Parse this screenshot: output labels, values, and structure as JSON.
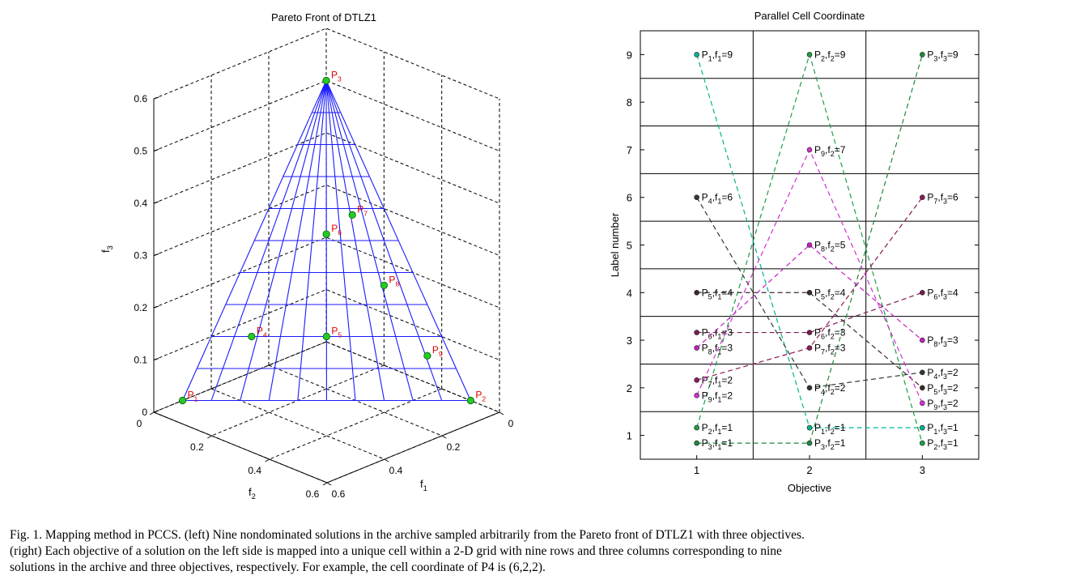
{
  "caption": {
    "line1": "Fig. 1.   Mapping method in PCCS. (left) Nine nondominated solutions in the archive sampled arbitrarily from the Pareto front of DTLZ1 with three objectives.",
    "line2": "(right) Each objective of a solution on the left side is mapped into a unique cell within a 2-D grid with nine rows and three columns corresponding to nine",
    "line3": "solutions in the archive and three objectives, respectively. For example, the cell coordinate of P4 is (6,2,2)."
  },
  "colors": {
    "mesh": "#1a1aff",
    "point_fill": "#22cc22",
    "point_label": "#e00000",
    "grid": "#000000"
  },
  "chart_data": [
    {
      "type": "scatter",
      "title": "Pareto Front of DTLZ1",
      "xlabel": "f1",
      "ylabel": "f2",
      "zlabel": "f3",
      "x_ticks": [
        "0",
        "0.2",
        "0.4",
        "0.6"
      ],
      "y_ticks": [
        "0",
        "0.2",
        "0.4",
        "0.6"
      ],
      "z_ticks": [
        "0",
        "0.1",
        "0.2",
        "0.3",
        "0.4",
        "0.5",
        "0.6"
      ],
      "xlim": [
        0,
        0.6
      ],
      "ylim": [
        0,
        0.6
      ],
      "zlim": [
        0,
        0.6
      ],
      "surface": "f1+f2+f3=0.5",
      "grid": true,
      "points": [
        {
          "name": "P1",
          "label_main": "P",
          "label_sub": "1",
          "f1": 0.0,
          "f2": 0.5,
          "f3": 0.0
        },
        {
          "name": "P2",
          "label_main": "P",
          "label_sub": "2",
          "f1": 0.5,
          "f2": 0.0,
          "f3": 0.0
        },
        {
          "name": "P3",
          "label_main": "P",
          "label_sub": "3",
          "f1": 0.0,
          "f2": 0.0,
          "f3": 0.5
        },
        {
          "name": "P4",
          "label_main": "P",
          "label_sub": "4",
          "f1": 0.07,
          "f2": 0.33,
          "f3": 0.1
        },
        {
          "name": "P5",
          "label_main": "P",
          "label_sub": "5",
          "f1": 0.2,
          "f2": 0.2,
          "f3": 0.1
        },
        {
          "name": "P6",
          "label_main": "P",
          "label_sub": "6",
          "f1": 0.12,
          "f2": 0.12,
          "f3": 0.26
        },
        {
          "name": "P7",
          "label_main": "P",
          "label_sub": "7",
          "f1": 0.15,
          "f2": 0.06,
          "f3": 0.29
        },
        {
          "name": "P8",
          "label_main": "P",
          "label_sub": "8",
          "f1": 0.26,
          "f2": 0.06,
          "f3": 0.18
        },
        {
          "name": "P9",
          "label_main": "P",
          "label_sub": "9",
          "f1": 0.39,
          "f2": 0.04,
          "f3": 0.07
        }
      ]
    },
    {
      "type": "line",
      "title": "Parallel Cell Coordinate",
      "xlabel": "Objective",
      "ylabel": "Label number",
      "x": [
        1,
        2,
        3
      ],
      "x_ticks": [
        "1",
        "2",
        "3"
      ],
      "y_ticks": [
        "1",
        "2",
        "3",
        "4",
        "5",
        "6",
        "7",
        "8",
        "9"
      ],
      "xlim": [
        0.5,
        3.5
      ],
      "ylim": [
        0.5,
        9.5
      ],
      "grid": true,
      "series": [
        {
          "name": "P1",
          "color": "#00b38f",
          "values": [
            9,
            1,
            1
          ],
          "labels": [
            {
              "p": "1",
              "f": "1",
              "v": "9"
            },
            {
              "p": "1",
              "f": "2",
              "v": "1"
            },
            {
              "p": "1",
              "f": "3",
              "v": "1"
            }
          ]
        },
        {
          "name": "P2",
          "color": "#1e9e46",
          "values": [
            1,
            9,
            1
          ],
          "labels": [
            {
              "p": "2",
              "f": "1",
              "v": "1"
            },
            {
              "p": "2",
              "f": "2",
              "v": "9"
            },
            {
              "p": "2",
              "f": "3",
              "v": "1"
            }
          ]
        },
        {
          "name": "P3",
          "color": "#1e8a3c",
          "values": [
            1,
            1,
            9
          ],
          "labels": [
            {
              "p": "3",
              "f": "1",
              "v": "1"
            },
            {
              "p": "3",
              "f": "2",
              "v": "1"
            },
            {
              "p": "3",
              "f": "3",
              "v": "9"
            }
          ]
        },
        {
          "name": "P4",
          "color": "#2e3a2e",
          "values": [
            6,
            2,
            2
          ],
          "labels": [
            {
              "p": "4",
              "f": "1",
              "v": "6"
            },
            {
              "p": "4",
              "f": "2",
              "v": "2"
            },
            {
              "p": "4",
              "f": "3",
              "v": "2"
            }
          ]
        },
        {
          "name": "P5",
          "color": "#3a2a2a",
          "values": [
            4,
            4,
            2
          ],
          "labels": [
            {
              "p": "5",
              "f": "1",
              "v": "4"
            },
            {
              "p": "5",
              "f": "2",
              "v": "4"
            },
            {
              "p": "5",
              "f": "3",
              "v": "2"
            }
          ]
        },
        {
          "name": "P6",
          "color": "#7a1a50",
          "values": [
            3,
            3,
            4
          ],
          "labels": [
            {
              "p": "6",
              "f": "1",
              "v": "3"
            },
            {
              "p": "6",
              "f": "2",
              "v": "3"
            },
            {
              "p": "6",
              "f": "3",
              "v": "4"
            }
          ]
        },
        {
          "name": "P7",
          "color": "#8a1a5a",
          "values": [
            2,
            3,
            6
          ],
          "labels": [
            {
              "p": "7",
              "f": "1",
              "v": "2"
            },
            {
              "p": "7",
              "f": "2",
              "v": "3"
            },
            {
              "p": "7",
              "f": "3",
              "v": "6"
            }
          ]
        },
        {
          "name": "P8",
          "color": "#c020c0",
          "values": [
            3,
            5,
            3
          ],
          "labels": [
            {
              "p": "8",
              "f": "1",
              "v": "3"
            },
            {
              "p": "8",
              "f": "2",
              "v": "5"
            },
            {
              "p": "8",
              "f": "3",
              "v": "3"
            }
          ]
        },
        {
          "name": "P9",
          "color": "#d030d0",
          "values": [
            2,
            7,
            2
          ],
          "labels": [
            {
              "p": "9",
              "f": "1",
              "v": "2"
            },
            {
              "p": "9",
              "f": "2",
              "v": "7"
            },
            {
              "p": "9",
              "f": "3",
              "v": "2"
            }
          ]
        }
      ]
    }
  ]
}
